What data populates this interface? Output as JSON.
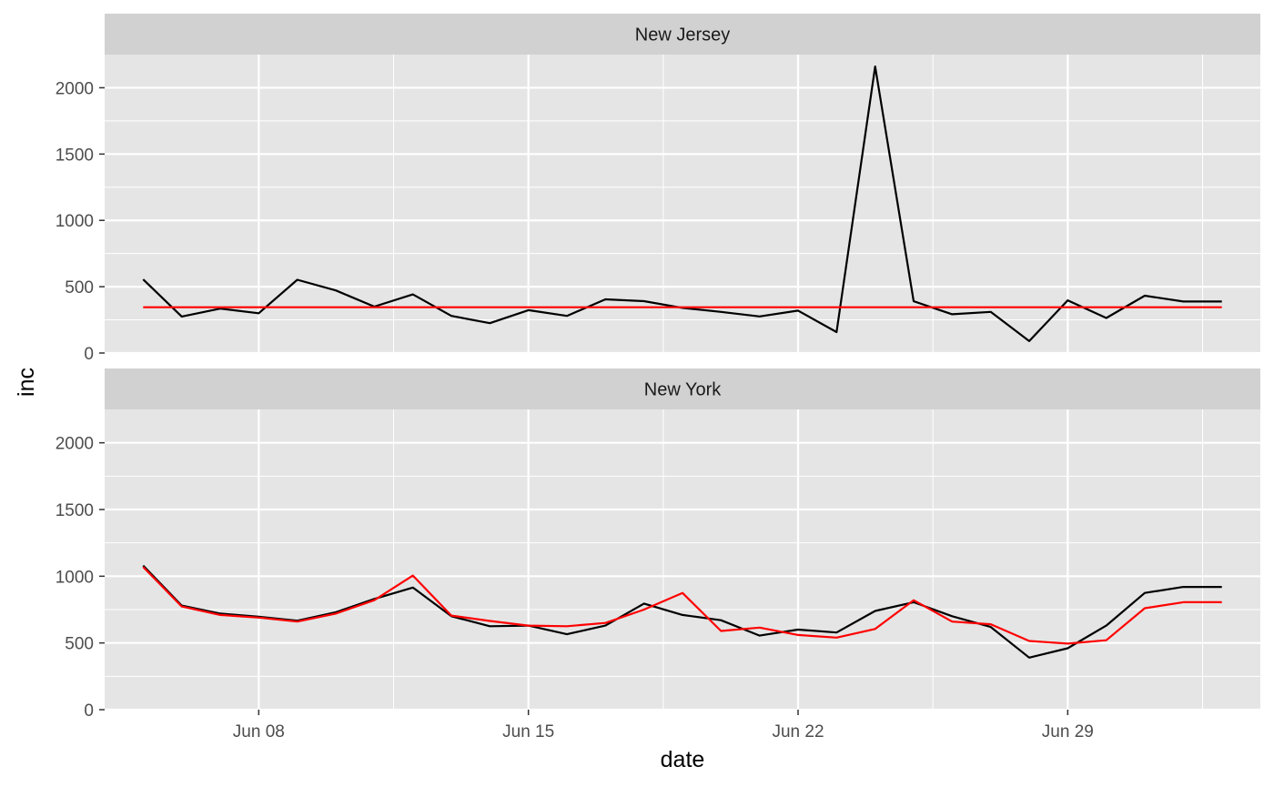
{
  "chart_data": {
    "type": "line",
    "xlabel": "date",
    "ylabel": "inc",
    "ylim": [
      0,
      2250
    ],
    "y_ticks": [
      0,
      500,
      1000,
      1500,
      2000
    ],
    "x_ticks": [
      {
        "date": "2020-06-08",
        "label": "Jun 08"
      },
      {
        "date": "2020-06-15",
        "label": "Jun 15"
      },
      {
        "date": "2020-06-22",
        "label": "Jun 22"
      },
      {
        "date": "2020-06-29",
        "label": "Jun 29"
      }
    ],
    "x_range": [
      "2020-06-04",
      "2020-07-04"
    ],
    "grid": true,
    "legend": "none",
    "colors": {
      "observed": "#000000",
      "fitted": "#ff0000",
      "panel_bg": "#e5e5e5",
      "strip_bg": "#d1d1d1",
      "grid": "#ffffff"
    },
    "dates": [
      "2020-06-05",
      "2020-06-06",
      "2020-06-07",
      "2020-06-08",
      "2020-06-09",
      "2020-06-10",
      "2020-06-11",
      "2020-06-12",
      "2020-06-13",
      "2020-06-14",
      "2020-06-15",
      "2020-06-16",
      "2020-06-17",
      "2020-06-18",
      "2020-06-19",
      "2020-06-20",
      "2020-06-21",
      "2020-06-22",
      "2020-06-23",
      "2020-06-24",
      "2020-06-25",
      "2020-06-26",
      "2020-06-27",
      "2020-06-28",
      "2020-06-29",
      "2020-06-30",
      "2020-07-01",
      "2020-07-02",
      "2020-07-03"
    ],
    "panels": [
      {
        "strip": "New Jersey",
        "series": [
          {
            "color": "#000000",
            "values": [
              555,
              275,
              335,
              300,
              552,
              472,
              350,
              442,
              280,
              225,
              323,
              280,
              405,
              391,
              340,
              310,
              276,
              320,
              158,
              2160,
              390,
              292,
              310,
              90,
              397,
              264,
              432,
              388,
              388
            ]
          },
          {
            "color": "#ff0000",
            "values": [
              345,
              345,
              345,
              345,
              345,
              345,
              345,
              345,
              345,
              345,
              345,
              345,
              345,
              345,
              345,
              345,
              345,
              345,
              345,
              345,
              345,
              345,
              345,
              345,
              345,
              345,
              345,
              345,
              345
            ]
          }
        ]
      },
      {
        "strip": "New York",
        "series": [
          {
            "color": "#000000",
            "values": [
              1080,
              780,
              720,
              697,
              667,
              730,
              830,
              915,
              700,
              625,
              630,
              565,
              630,
              795,
              710,
              670,
              555,
              600,
              578,
              740,
              805,
              700,
              620,
              390,
              460,
              630,
              875,
              920,
              920
            ]
          },
          {
            "color": "#ff0000",
            "values": [
              1070,
              773,
              710,
              690,
              660,
              720,
              820,
              1005,
              705,
              665,
              630,
              625,
              650,
              750,
              875,
              590,
              615,
              560,
              540,
              605,
              820,
              660,
              640,
              515,
              495,
              520,
              760,
              805,
              805
            ]
          }
        ]
      }
    ]
  }
}
